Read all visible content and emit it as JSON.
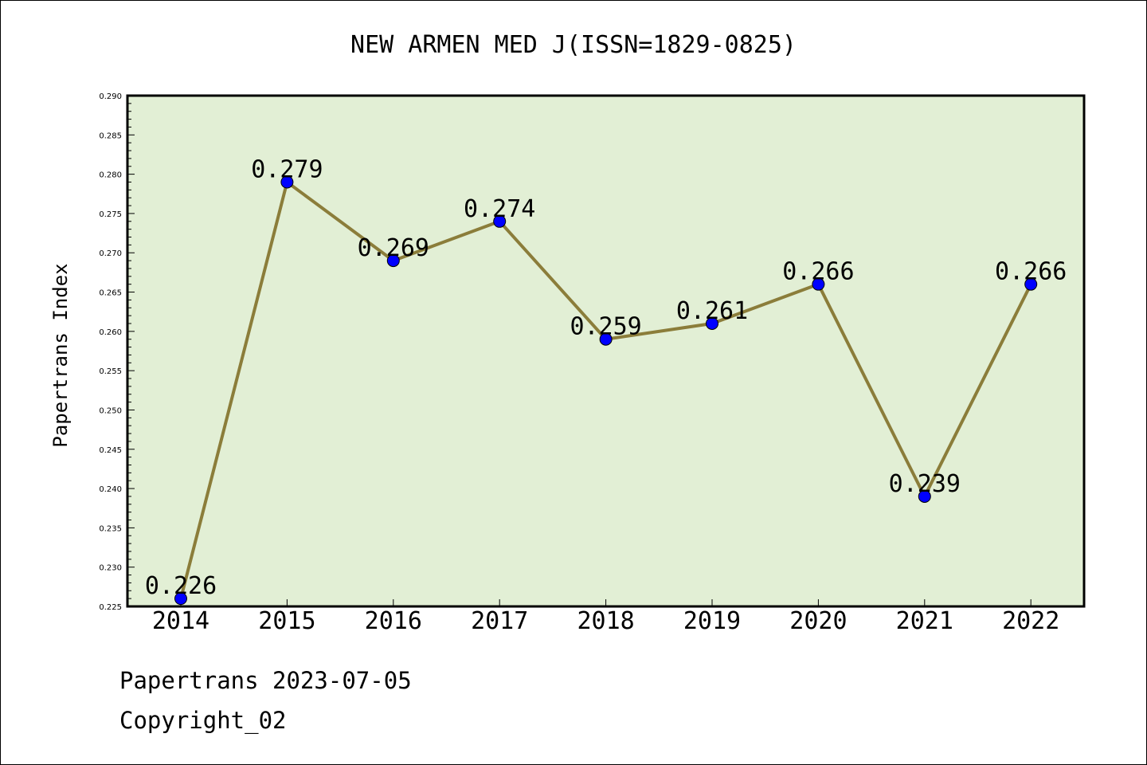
{
  "chart_data": {
    "type": "line",
    "title": "NEW ARMEN MED J(ISSN=1829-0825)",
    "xlabel": "",
    "ylabel": "Papertrans Index",
    "categories": [
      "2014",
      "2015",
      "2016",
      "2017",
      "2018",
      "2019",
      "2020",
      "2021",
      "2022"
    ],
    "series": [
      {
        "values": [
          0.226,
          0.279,
          0.269,
          0.274,
          0.259,
          0.261,
          0.266,
          0.239,
          0.266
        ],
        "labels": [
          "0.226",
          "0.279",
          "0.269",
          "0.274",
          "0.259",
          "0.261",
          "0.266",
          "0.239",
          "0.266"
        ]
      }
    ],
    "ylim": [
      0.225,
      0.29
    ],
    "yticks": [
      "0.225",
      "0.230",
      "0.235",
      "0.240",
      "0.245",
      "0.250",
      "0.255",
      "0.260",
      "0.265",
      "0.270",
      "0.275",
      "0.280",
      "0.285",
      "0.290"
    ],
    "grid": false,
    "legend": "none",
    "colors": {
      "plot_background": "#e2efd5",
      "line": "#8b7d3a",
      "marker": "#0000ff",
      "frame": "#000000"
    }
  },
  "footer": {
    "line1": "Papertrans 2023-07-05",
    "line2": "Copyright_02"
  }
}
